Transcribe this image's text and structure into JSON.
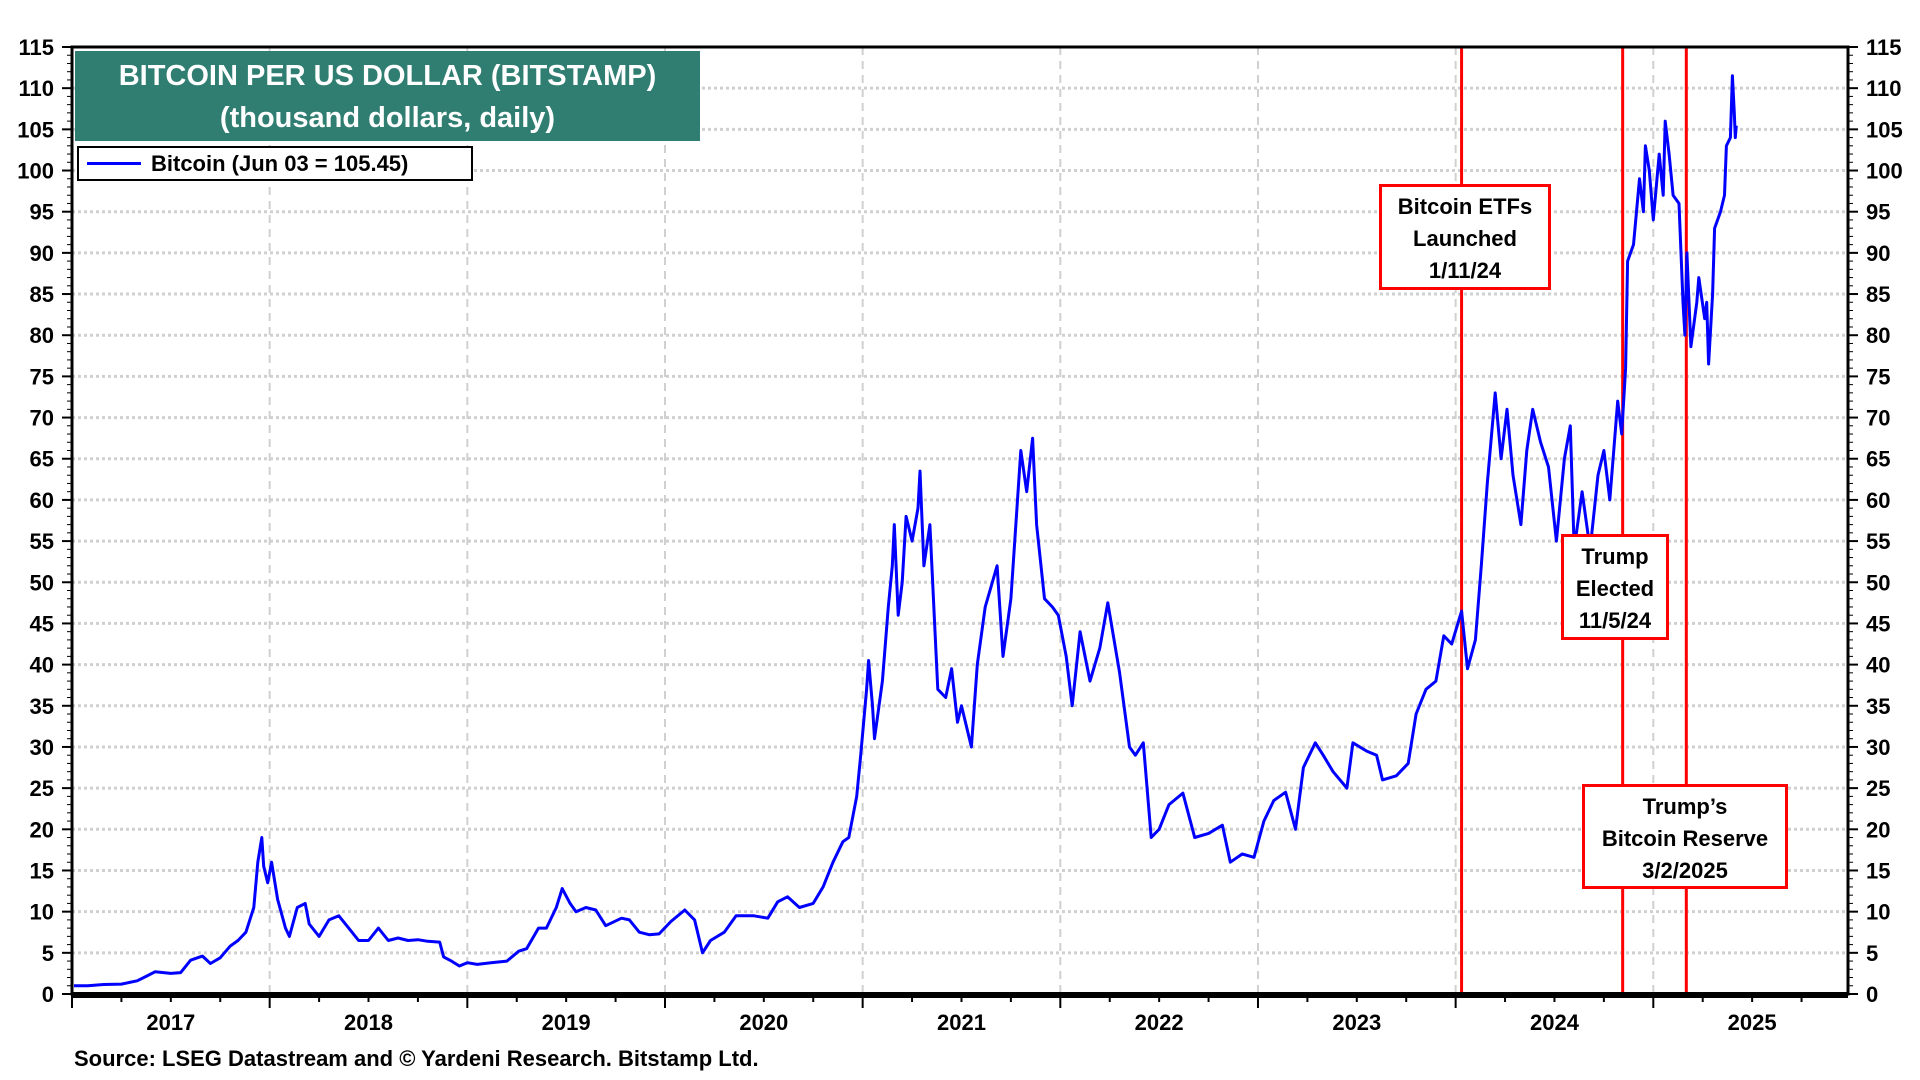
{
  "chart_data": {
    "type": "line",
    "title": "BITCOIN PER US DOLLAR (BITSTAMP)",
    "subtitle": "(thousand dollars, daily)",
    "xlabel": "",
    "ylabel": "",
    "xlim": [
      2017.0,
      2025.985
    ],
    "ylim": [
      0,
      115
    ],
    "y_ticks": [
      0,
      5,
      10,
      15,
      20,
      25,
      30,
      35,
      40,
      45,
      50,
      55,
      60,
      65,
      70,
      75,
      80,
      85,
      90,
      95,
      100,
      105,
      110,
      115
    ],
    "x_tick_labels": [
      "2017",
      "2018",
      "2019",
      "2020",
      "2021",
      "2022",
      "2023",
      "2024",
      "2025"
    ],
    "grid": true,
    "legend_placement": "top-left",
    "series": [
      {
        "name": "Bitcoin (Jun 03 = 105.45)",
        "color": "#0000ff",
        "points": [
          [
            2017.01,
            1.0
          ],
          [
            2017.08,
            1.0
          ],
          [
            2017.16,
            1.15
          ],
          [
            2017.25,
            1.2
          ],
          [
            2017.33,
            1.6
          ],
          [
            2017.38,
            2.2
          ],
          [
            2017.42,
            2.7
          ],
          [
            2017.5,
            2.5
          ],
          [
            2017.55,
            2.6
          ],
          [
            2017.6,
            4.1
          ],
          [
            2017.66,
            4.6
          ],
          [
            2017.7,
            3.7
          ],
          [
            2017.75,
            4.4
          ],
          [
            2017.8,
            5.8
          ],
          [
            2017.84,
            6.5
          ],
          [
            2017.88,
            7.5
          ],
          [
            2017.92,
            10.5
          ],
          [
            2017.94,
            16.0
          ],
          [
            2017.96,
            19.0
          ],
          [
            2017.97,
            15.5
          ],
          [
            2017.99,
            13.5
          ],
          [
            2018.01,
            16.0
          ],
          [
            2018.04,
            11.5
          ],
          [
            2018.08,
            8.0
          ],
          [
            2018.1,
            7.0
          ],
          [
            2018.14,
            10.5
          ],
          [
            2018.18,
            11.0
          ],
          [
            2018.2,
            8.5
          ],
          [
            2018.25,
            7.0
          ],
          [
            2018.3,
            9.0
          ],
          [
            2018.35,
            9.5
          ],
          [
            2018.4,
            8.0
          ],
          [
            2018.45,
            6.5
          ],
          [
            2018.5,
            6.5
          ],
          [
            2018.55,
            8.0
          ],
          [
            2018.6,
            6.5
          ],
          [
            2018.65,
            6.8
          ],
          [
            2018.7,
            6.5
          ],
          [
            2018.75,
            6.6
          ],
          [
            2018.8,
            6.4
          ],
          [
            2018.86,
            6.3
          ],
          [
            2018.88,
            4.5
          ],
          [
            2018.92,
            4.0
          ],
          [
            2018.96,
            3.4
          ],
          [
            2019.0,
            3.8
          ],
          [
            2019.05,
            3.6
          ],
          [
            2019.12,
            3.8
          ],
          [
            2019.2,
            4.0
          ],
          [
            2019.26,
            5.2
          ],
          [
            2019.3,
            5.5
          ],
          [
            2019.36,
            8.0
          ],
          [
            2019.4,
            8.0
          ],
          [
            2019.45,
            10.5
          ],
          [
            2019.48,
            12.8
          ],
          [
            2019.52,
            11.0
          ],
          [
            2019.55,
            10.0
          ],
          [
            2019.6,
            10.5
          ],
          [
            2019.65,
            10.2
          ],
          [
            2019.7,
            8.3
          ],
          [
            2019.78,
            9.2
          ],
          [
            2019.82,
            9.0
          ],
          [
            2019.87,
            7.5
          ],
          [
            2019.92,
            7.2
          ],
          [
            2019.97,
            7.3
          ],
          [
            2020.03,
            8.8
          ],
          [
            2020.1,
            10.2
          ],
          [
            2020.15,
            9.0
          ],
          [
            2020.19,
            5.0
          ],
          [
            2020.23,
            6.5
          ],
          [
            2020.3,
            7.5
          ],
          [
            2020.36,
            9.5
          ],
          [
            2020.45,
            9.5
          ],
          [
            2020.52,
            9.2
          ],
          [
            2020.57,
            11.2
          ],
          [
            2020.62,
            11.8
          ],
          [
            2020.68,
            10.5
          ],
          [
            2020.75,
            11.0
          ],
          [
            2020.8,
            13.0
          ],
          [
            2020.85,
            16.0
          ],
          [
            2020.9,
            18.5
          ],
          [
            2020.93,
            19.0
          ],
          [
            2020.97,
            24.0
          ],
          [
            2020.99,
            29.0
          ],
          [
            2021.02,
            37.0
          ],
          [
            2021.03,
            40.5
          ],
          [
            2021.05,
            35.0
          ],
          [
            2021.06,
            31.0
          ],
          [
            2021.1,
            38.0
          ],
          [
            2021.13,
            47.0
          ],
          [
            2021.15,
            52.0
          ],
          [
            2021.16,
            57.0
          ],
          [
            2021.18,
            46.0
          ],
          [
            2021.2,
            50.0
          ],
          [
            2021.22,
            58.0
          ],
          [
            2021.25,
            55.0
          ],
          [
            2021.28,
            59.0
          ],
          [
            2021.29,
            63.5
          ],
          [
            2021.31,
            52.0
          ],
          [
            2021.34,
            57.0
          ],
          [
            2021.37,
            42.0
          ],
          [
            2021.38,
            37.0
          ],
          [
            2021.42,
            36.0
          ],
          [
            2021.45,
            39.5
          ],
          [
            2021.48,
            33.0
          ],
          [
            2021.5,
            35.0
          ],
          [
            2021.55,
            30.0
          ],
          [
            2021.58,
            40.0
          ],
          [
            2021.62,
            47.0
          ],
          [
            2021.68,
            52.0
          ],
          [
            2021.71,
            41.0
          ],
          [
            2021.75,
            48.0
          ],
          [
            2021.8,
            66.0
          ],
          [
            2021.83,
            61.0
          ],
          [
            2021.86,
            67.5
          ],
          [
            2021.88,
            57.0
          ],
          [
            2021.92,
            48.0
          ],
          [
            2021.96,
            47.0
          ],
          [
            2021.99,
            46.0
          ],
          [
            2022.03,
            41.0
          ],
          [
            2022.06,
            35.0
          ],
          [
            2022.1,
            44.0
          ],
          [
            2022.15,
            38.0
          ],
          [
            2022.2,
            42.0
          ],
          [
            2022.24,
            47.5
          ],
          [
            2022.3,
            39.0
          ],
          [
            2022.35,
            30.0
          ],
          [
            2022.38,
            29.0
          ],
          [
            2022.42,
            30.5
          ],
          [
            2022.46,
            19.0
          ],
          [
            2022.5,
            20.0
          ],
          [
            2022.55,
            23.0
          ],
          [
            2022.62,
            24.4
          ],
          [
            2022.68,
            19.0
          ],
          [
            2022.75,
            19.5
          ],
          [
            2022.82,
            20.5
          ],
          [
            2022.86,
            16.0
          ],
          [
            2022.92,
            17.0
          ],
          [
            2022.98,
            16.6
          ],
          [
            2023.03,
            21.0
          ],
          [
            2023.08,
            23.5
          ],
          [
            2023.14,
            24.5
          ],
          [
            2023.19,
            20.0
          ],
          [
            2023.23,
            27.5
          ],
          [
            2023.29,
            30.5
          ],
          [
            2023.33,
            29.0
          ],
          [
            2023.38,
            27.0
          ],
          [
            2023.45,
            25.0
          ],
          [
            2023.48,
            30.5
          ],
          [
            2023.55,
            29.5
          ],
          [
            2023.6,
            29.0
          ],
          [
            2023.63,
            26.0
          ],
          [
            2023.7,
            26.5
          ],
          [
            2023.76,
            28.0
          ],
          [
            2023.8,
            34.0
          ],
          [
            2023.85,
            37.0
          ],
          [
            2023.9,
            38.0
          ],
          [
            2023.94,
            43.5
          ],
          [
            2023.98,
            42.5
          ],
          [
            2024.03,
            46.5
          ],
          [
            2024.06,
            39.5
          ],
          [
            2024.1,
            43.0
          ],
          [
            2024.13,
            52.0
          ],
          [
            2024.16,
            62.0
          ],
          [
            2024.2,
            73.0
          ],
          [
            2024.23,
            65.0
          ],
          [
            2024.26,
            71.0
          ],
          [
            2024.29,
            63.0
          ],
          [
            2024.33,
            57.0
          ],
          [
            2024.36,
            66.0
          ],
          [
            2024.39,
            71.0
          ],
          [
            2024.43,
            67.0
          ],
          [
            2024.47,
            64.0
          ],
          [
            2024.51,
            55.0
          ],
          [
            2024.55,
            65.0
          ],
          [
            2024.58,
            69.0
          ],
          [
            2024.6,
            54.0
          ],
          [
            2024.64,
            61.0
          ],
          [
            2024.68,
            54.0
          ],
          [
            2024.72,
            63.0
          ],
          [
            2024.75,
            66.0
          ],
          [
            2024.78,
            60.0
          ],
          [
            2024.82,
            72.0
          ],
          [
            2024.84,
            68.0
          ],
          [
            2024.86,
            76.0
          ],
          [
            2024.87,
            89.0
          ],
          [
            2024.9,
            91.0
          ],
          [
            2024.93,
            99.0
          ],
          [
            2024.95,
            95.0
          ],
          [
            2024.96,
            103.0
          ],
          [
            2024.98,
            100.0
          ],
          [
            2025.0,
            94.0
          ],
          [
            2025.03,
            102.0
          ],
          [
            2025.05,
            97.0
          ],
          [
            2025.06,
            106.0
          ],
          [
            2025.08,
            102.0
          ],
          [
            2025.1,
            97.0
          ],
          [
            2025.13,
            96.0
          ],
          [
            2025.15,
            84.0
          ],
          [
            2025.16,
            80.0
          ],
          [
            2025.17,
            90.0
          ],
          [
            2025.19,
            78.6
          ],
          [
            2025.22,
            84.0
          ],
          [
            2025.23,
            87.0
          ],
          [
            2025.26,
            82.0
          ],
          [
            2025.27,
            84.0
          ],
          [
            2025.28,
            76.5
          ],
          [
            2025.3,
            85.0
          ],
          [
            2025.31,
            93.0
          ],
          [
            2025.34,
            95.0
          ],
          [
            2025.36,
            97.0
          ],
          [
            2025.37,
            103.0
          ],
          [
            2025.39,
            104.0
          ],
          [
            2025.4,
            111.5
          ],
          [
            2025.41,
            107.0
          ],
          [
            2025.415,
            104.0
          ],
          [
            2025.42,
            105.45
          ]
        ]
      }
    ],
    "annotations": [
      {
        "lines": [
          "Bitcoin ETFs",
          "Launched",
          "1/11/24"
        ],
        "date": 2024.03,
        "color": "#ff0000"
      },
      {
        "lines": [
          "Trump",
          "Elected",
          "11/5/24"
        ],
        "date": 2024.845,
        "color": "#ff0000"
      },
      {
        "lines": [
          "Trump’s",
          "Bitcoin Reserve",
          "3/2/2025"
        ],
        "date": 2025.167,
        "color": "#ff0000"
      }
    ]
  },
  "legend": {
    "label": "Bitcoin (Jun 03 = 105.45)"
  },
  "source": "Source: LSEG Datastream and © Yardeni Research. Bitstamp Ltd."
}
